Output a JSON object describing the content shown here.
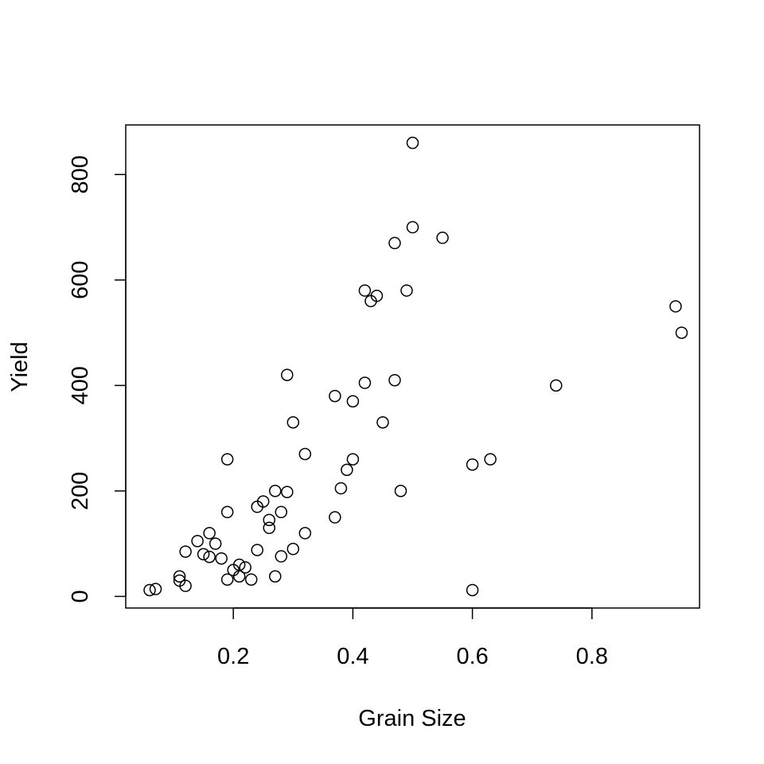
{
  "chart_data": {
    "type": "scatter",
    "title": "",
    "xlabel": "Grain Size",
    "ylabel": "Yield",
    "xlim": [
      0.02,
      0.98
    ],
    "ylim": [
      -22,
      894
    ],
    "xticks": [
      0.2,
      0.4,
      0.6,
      0.8
    ],
    "xtick_labels": [
      "0.2",
      "0.4",
      "0.6",
      "0.8"
    ],
    "yticks": [
      0,
      200,
      400,
      600,
      800
    ],
    "ytick_labels": [
      "0",
      "200",
      "400",
      "600",
      "800"
    ],
    "grid": false,
    "legend": "none",
    "marker": "open-circle",
    "points": [
      {
        "x": 0.06,
        "y": 12
      },
      {
        "x": 0.07,
        "y": 14
      },
      {
        "x": 0.11,
        "y": 38
      },
      {
        "x": 0.11,
        "y": 30
      },
      {
        "x": 0.12,
        "y": 20
      },
      {
        "x": 0.12,
        "y": 85
      },
      {
        "x": 0.14,
        "y": 105
      },
      {
        "x": 0.15,
        "y": 80
      },
      {
        "x": 0.16,
        "y": 120
      },
      {
        "x": 0.16,
        "y": 75
      },
      {
        "x": 0.17,
        "y": 100
      },
      {
        "x": 0.18,
        "y": 72
      },
      {
        "x": 0.19,
        "y": 260
      },
      {
        "x": 0.19,
        "y": 160
      },
      {
        "x": 0.19,
        "y": 32
      },
      {
        "x": 0.2,
        "y": 50
      },
      {
        "x": 0.21,
        "y": 60
      },
      {
        "x": 0.21,
        "y": 38
      },
      {
        "x": 0.22,
        "y": 55
      },
      {
        "x": 0.23,
        "y": 32
      },
      {
        "x": 0.24,
        "y": 170
      },
      {
        "x": 0.24,
        "y": 88
      },
      {
        "x": 0.25,
        "y": 180
      },
      {
        "x": 0.26,
        "y": 145
      },
      {
        "x": 0.26,
        "y": 130
      },
      {
        "x": 0.27,
        "y": 200
      },
      {
        "x": 0.27,
        "y": 38
      },
      {
        "x": 0.28,
        "y": 160
      },
      {
        "x": 0.28,
        "y": 76
      },
      {
        "x": 0.29,
        "y": 420
      },
      {
        "x": 0.29,
        "y": 198
      },
      {
        "x": 0.3,
        "y": 330
      },
      {
        "x": 0.3,
        "y": 90
      },
      {
        "x": 0.32,
        "y": 270
      },
      {
        "x": 0.32,
        "y": 120
      },
      {
        "x": 0.37,
        "y": 380
      },
      {
        "x": 0.37,
        "y": 150
      },
      {
        "x": 0.38,
        "y": 205
      },
      {
        "x": 0.39,
        "y": 240
      },
      {
        "x": 0.4,
        "y": 370
      },
      {
        "x": 0.4,
        "y": 260
      },
      {
        "x": 0.42,
        "y": 580
      },
      {
        "x": 0.42,
        "y": 405
      },
      {
        "x": 0.43,
        "y": 560
      },
      {
        "x": 0.44,
        "y": 570
      },
      {
        "x": 0.45,
        "y": 330
      },
      {
        "x": 0.47,
        "y": 670
      },
      {
        "x": 0.47,
        "y": 410
      },
      {
        "x": 0.48,
        "y": 200
      },
      {
        "x": 0.49,
        "y": 580
      },
      {
        "x": 0.5,
        "y": 860
      },
      {
        "x": 0.5,
        "y": 700
      },
      {
        "x": 0.55,
        "y": 680
      },
      {
        "x": 0.6,
        "y": 250
      },
      {
        "x": 0.6,
        "y": 12
      },
      {
        "x": 0.63,
        "y": 260
      },
      {
        "x": 0.74,
        "y": 400
      },
      {
        "x": 0.94,
        "y": 550
      },
      {
        "x": 0.95,
        "y": 500
      }
    ]
  }
}
